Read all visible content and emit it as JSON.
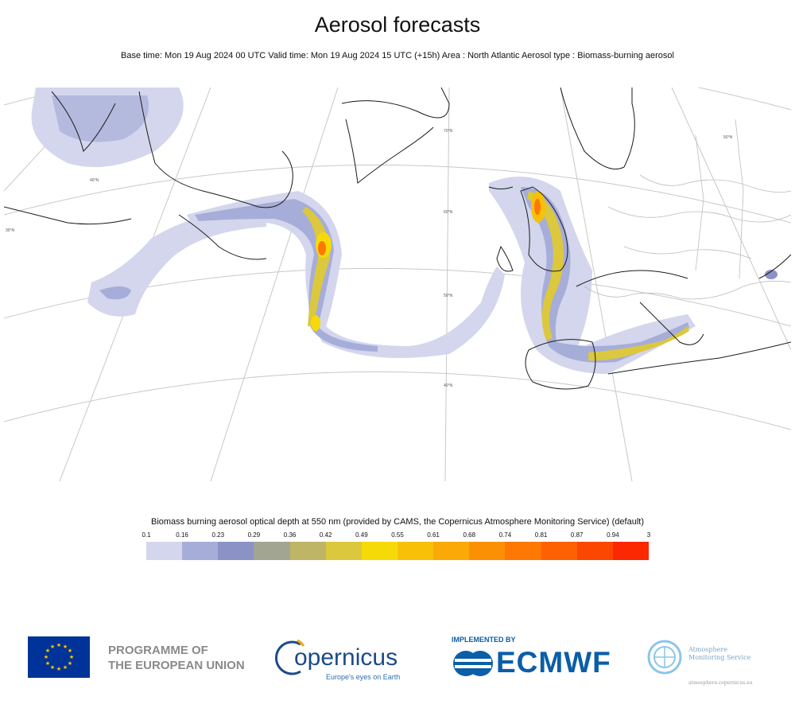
{
  "header": {
    "title": "Aerosol forecasts",
    "subtitle": "Base time: Mon 19 Aug 2024 00 UTC Valid time: Mon 19 Aug 2024 15 UTC (+15h) Area : North Atlantic Aerosol type : Biomass-burning aerosol"
  },
  "map": {
    "latitude_labels": [
      "70°N",
      "60°N",
      "50°N",
      "40°N",
      "40°N",
      "30°N",
      "50°N"
    ]
  },
  "legend": {
    "title": "Biomass burning aerosol optical depth at 550 nm (provided by CAMS, the Copernicus Atmosphere Monitoring Service) (default)",
    "ticks": [
      "0.1",
      "0.16",
      "0.23",
      "0.29",
      "0.36",
      "0.42",
      "0.49",
      "0.55",
      "0.61",
      "0.68",
      "0.74",
      "0.81",
      "0.87",
      "0.94",
      "3"
    ],
    "colors": [
      "#d3d6ec",
      "#a6add9",
      "#8b93c6",
      "#a2a592",
      "#beb566",
      "#dcc83c",
      "#f5da08",
      "#f8c108",
      "#faa907",
      "#fc9005",
      "#fe7803",
      "#fe6102",
      "#fc4701",
      "#fb2801"
    ]
  },
  "footer": {
    "eu_text_line1": "PROGRAMME OF",
    "eu_text_line2": "THE EUROPEAN UNION",
    "copernicus_word": "opernicus",
    "copernicus_tagline": "Europe's eyes on Earth",
    "implemented_by": "IMPLEMENTED BY",
    "ecmwf_word": "ECMWF",
    "ams_line1": "Atmosphere",
    "ams_line2": "Monitoring Service",
    "ams_url": "atmosphere.copernicus.eu"
  }
}
